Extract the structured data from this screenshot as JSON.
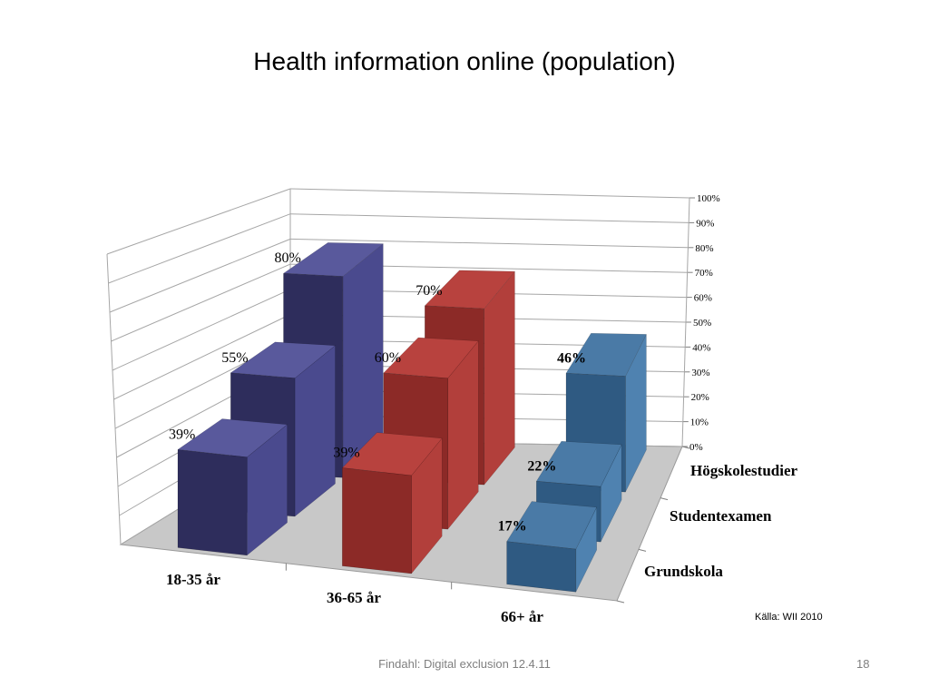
{
  "slide": {
    "title": "Health information online (population)",
    "source": "Källa: WII 2010",
    "footer": "Findahl: Digital exclusion 12.4.11",
    "page_number": "18"
  },
  "chart_data": {
    "type": "bar",
    "projection": "3d",
    "categories": [
      "18-35 år",
      "36-65 år",
      "66+ år"
    ],
    "series": [
      {
        "name": "Grundskola",
        "values": [
          39,
          39,
          17
        ]
      },
      {
        "name": "Studentexamen",
        "values": [
          55,
          60,
          22
        ]
      },
      {
        "name": "Högskolestudier",
        "values": [
          80,
          70,
          46
        ]
      }
    ],
    "data_labels": [
      [
        "39%",
        "39%",
        "17%"
      ],
      [
        "55%",
        "60%",
        "22%"
      ],
      [
        "80%",
        "70%",
        "46%"
      ]
    ],
    "y_ticks": [
      "0%",
      "10%",
      "20%",
      "30%",
      "40%",
      "50%",
      "60%",
      "70%",
      "80%",
      "90%",
      "100%"
    ],
    "ylim": [
      0,
      100
    ],
    "grid": true,
    "colors": {
      "18-35 år": {
        "front": "#2e2d5c",
        "side": "#4a4a8e",
        "top": "#59599c"
      },
      "36-65 år": {
        "front": "#8c2a27",
        "side": "#b23f3b",
        "top": "#b8423e"
      },
      "66+ år": {
        "front": "#2f5a82",
        "side": "#4f82b0",
        "top": "#4a7aa6"
      }
    },
    "floor_color": "#c8c8c8",
    "grid_color": "#a6a6a6"
  }
}
